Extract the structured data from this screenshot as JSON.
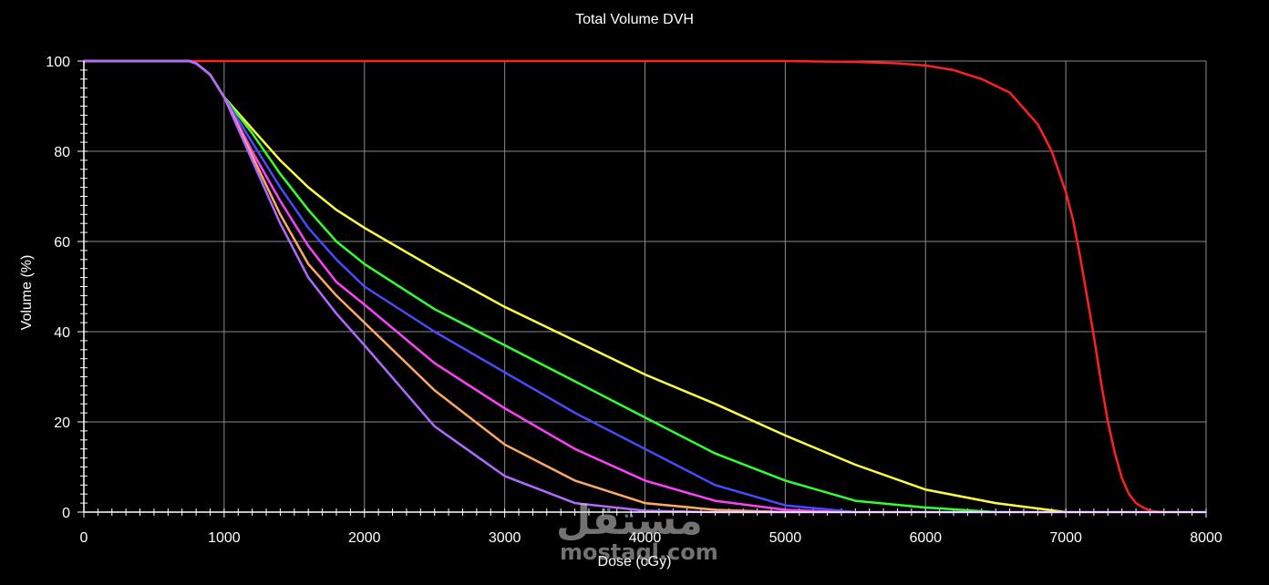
{
  "chart_data": {
    "type": "line",
    "title": "Total Volume DVH",
    "xlabel": "Dose (cGy)",
    "ylabel": "Volume (%)",
    "xlim": [
      0,
      8000
    ],
    "ylim": [
      0,
      100
    ],
    "xticks": [
      "0",
      "1000",
      "2000",
      "3000",
      "4000",
      "5000",
      "6000",
      "7000",
      "8000"
    ],
    "yticks": [
      "0",
      "20",
      "40",
      "60",
      "80",
      "100"
    ],
    "grid": true,
    "legend": "none",
    "series": [
      {
        "color": "#ff2020",
        "x": [
          0,
          5000,
          5500,
          5800,
          6000,
          6200,
          6400,
          6600,
          6800,
          6900,
          7000,
          7050,
          7100,
          7150,
          7200,
          7250,
          7300,
          7350,
          7400,
          7450,
          7500,
          7550,
          7600,
          7650,
          7700
        ],
        "y": [
          100,
          100,
          99.8,
          99.5,
          99,
          98,
          96,
          93,
          86,
          80,
          71,
          65,
          57,
          48,
          39,
          29,
          20,
          13,
          7.5,
          4,
          2,
          1,
          0.3,
          0.1,
          0
        ]
      },
      {
        "color": "#ffff40",
        "x": [
          0,
          750,
          800,
          900,
          1000,
          1200,
          1400,
          1600,
          1800,
          2000,
          2500,
          3000,
          3500,
          4000,
          4500,
          5000,
          5500,
          6000,
          6500,
          7000
        ],
        "y": [
          100,
          100,
          99.5,
          97,
          92,
          85,
          78,
          72,
          67,
          63,
          54,
          45.5,
          38,
          30.5,
          24,
          17,
          10.5,
          5,
          2,
          0
        ]
      },
      {
        "color": "#30ff30",
        "x": [
          0,
          750,
          800,
          900,
          1000,
          1200,
          1400,
          1600,
          1800,
          2000,
          2500,
          3000,
          3500,
          4000,
          4500,
          5000,
          5500,
          6000,
          6500
        ],
        "y": [
          100,
          100,
          99.5,
          97,
          92,
          84,
          75,
          67,
          60,
          55,
          45,
          37,
          29,
          21,
          13,
          7,
          2.5,
          1,
          0
        ]
      },
      {
        "color": "#4a4aff",
        "x": [
          0,
          750,
          800,
          900,
          1000,
          1200,
          1400,
          1600,
          1800,
          2000,
          2500,
          3000,
          3500,
          4000,
          4500,
          5000,
          5500
        ],
        "y": [
          100,
          100,
          99.5,
          97,
          92,
          82,
          72,
          63,
          56,
          50,
          40,
          31,
          22,
          14,
          6,
          1.5,
          0
        ]
      },
      {
        "color": "#ff40ff",
        "x": [
          0,
          750,
          800,
          900,
          1000,
          1200,
          1400,
          1600,
          1800,
          2000,
          2500,
          3000,
          3500,
          4000,
          4500,
          5000,
          5400
        ],
        "y": [
          100,
          100,
          99.5,
          97,
          92,
          80,
          69,
          59,
          51,
          46,
          33,
          23,
          14,
          7,
          2.5,
          0.5,
          0
        ]
      },
      {
        "color": "#ffaa60",
        "x": [
          0,
          750,
          800,
          900,
          1000,
          1200,
          1400,
          1600,
          1800,
          2000,
          2500,
          3000,
          3500,
          4000,
          4500,
          5000
        ],
        "y": [
          100,
          100,
          99.5,
          97,
          92,
          79,
          66,
          55,
          48,
          42,
          27,
          15,
          7,
          2,
          0.5,
          0
        ]
      },
      {
        "color": "#b06aff",
        "x": [
          0,
          750,
          800,
          900,
          1000,
          1200,
          1400,
          1600,
          1800,
          2000,
          2500,
          3000,
          3500,
          4000,
          4500,
          5000,
          8000
        ],
        "y": [
          100,
          100,
          99.5,
          97,
          92,
          78,
          64,
          52,
          44,
          37,
          19,
          8,
          2,
          0.3,
          0,
          0,
          0
        ]
      }
    ]
  },
  "watermark": {
    "arabic": "مستقل",
    "latin": "mostaql.com"
  }
}
